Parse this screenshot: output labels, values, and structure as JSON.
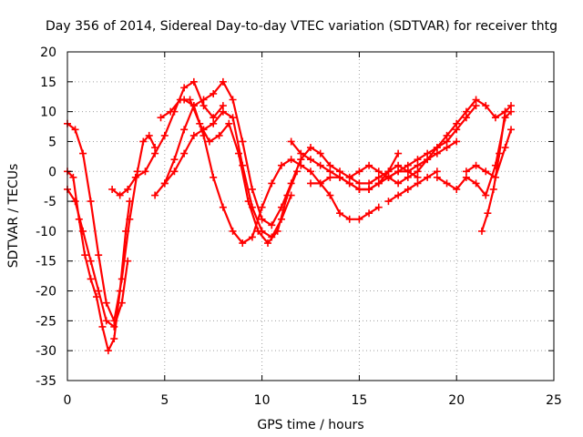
{
  "chart_data": {
    "type": "scatter",
    "title": "Day 356 of 2014, Sidereal Day-to-day VTEC variation (SDTVAR) for receiver thtg",
    "xlabel": "GPS time / hours",
    "ylabel": "SDTVAR / TECUs",
    "xlim": [
      0,
      25
    ],
    "ylim": [
      -35,
      20
    ],
    "xticks": [
      "0",
      "5",
      "10",
      "15",
      "20",
      "25"
    ],
    "yticks": [
      "20",
      "15",
      "10",
      "5",
      "0",
      "-5",
      "-10",
      "-15",
      "-20",
      "-25",
      "-30",
      "-35"
    ],
    "grid": true,
    "marker": "+",
    "color": "#ff0000",
    "series": [
      {
        "x": [
          0.0,
          0.4,
          0.8,
          1.2,
          1.6,
          2.0,
          2.4,
          2.8,
          3.2,
          3.6,
          3.9,
          4.2,
          4.5
        ],
        "y": [
          8,
          7,
          3,
          -5,
          -14,
          -22,
          -25,
          -18,
          -8,
          0,
          5,
          6,
          4
        ]
      },
      {
        "x": [
          0.0,
          0.3,
          0.6,
          0.9,
          1.2,
          1.5,
          1.8,
          2.1,
          2.4,
          2.7,
          3.0,
          3.2
        ],
        "y": [
          0,
          -1,
          -8,
          -14,
          -18,
          -21,
          -26,
          -30,
          -28,
          -20,
          -10,
          -5
        ]
      },
      {
        "x": [
          0.0,
          0.4,
          0.8,
          1.2,
          1.6,
          2.0,
          2.4,
          2.8,
          3.1
        ],
        "y": [
          -3,
          -5,
          -10,
          -15,
          -20,
          -25,
          -26,
          -22,
          -15
        ]
      },
      {
        "x": [
          2.3,
          2.7,
          3.1,
          3.5,
          4.0,
          4.5,
          5.0,
          5.5,
          6.0,
          6.5,
          7.0,
          7.5,
          8.0
        ],
        "y": [
          -3,
          -4,
          -3,
          -1,
          0,
          3,
          6,
          10,
          14,
          15,
          11,
          9,
          11
        ]
      },
      {
        "x": [
          4.5,
          5.0,
          5.5,
          6.0,
          6.5,
          7.0,
          7.5,
          8.0,
          8.5,
          9.0,
          9.5,
          10.0,
          10.5,
          11.0,
          11.5,
          12.0
        ],
        "y": [
          -4,
          -2,
          2,
          7,
          11,
          12,
          13,
          15,
          12,
          5,
          -3,
          -8,
          -9,
          -6,
          -2,
          2
        ]
      },
      {
        "x": [
          4.8,
          5.3,
          5.8,
          6.3,
          6.8,
          7.3,
          7.8,
          8.3,
          8.8,
          9.3,
          9.8,
          10.3,
          10.8,
          11.3,
          11.8
        ],
        "y": [
          9,
          10,
          12,
          12,
          8,
          5,
          6,
          8,
          3,
          -5,
          -10,
          -12,
          -10,
          -4,
          0
        ]
      },
      {
        "x": [
          5.0,
          5.5,
          6.0,
          6.5,
          7.0,
          7.5,
          8.0,
          8.5,
          9.0,
          9.5,
          10.0,
          10.5,
          11.0,
          11.5
        ],
        "y": [
          -2,
          0,
          3,
          6,
          7,
          8,
          10,
          9,
          1,
          -6,
          -10,
          -11,
          -8,
          -4
        ]
      },
      {
        "x": [
          6.0,
          6.5,
          7.0,
          7.5,
          8.0,
          8.5,
          9.0,
          9.5,
          10.0,
          10.5,
          11.0,
          11.5,
          12.0,
          12.5,
          13.0,
          13.5,
          14.0,
          14.5,
          15.0,
          15.5,
          16.0
        ],
        "y": [
          12,
          11,
          6,
          -1,
          -6,
          -10,
          -12,
          -11,
          -6,
          -2,
          1,
          2,
          1,
          0,
          -2,
          -4,
          -7,
          -8,
          -8,
          -7,
          -6
        ]
      },
      {
        "x": [
          11.5,
          12.0,
          12.5,
          13.0,
          13.5,
          14.0,
          14.5,
          15.0,
          15.5,
          16.0,
          16.5,
          17.0
        ],
        "y": [
          5,
          3,
          2,
          1,
          0,
          -1,
          -2,
          -3,
          -3,
          -2,
          0,
          3
        ]
      },
      {
        "x": [
          12.0,
          12.5,
          13.0,
          13.5,
          14.0,
          14.5,
          15.0,
          15.5,
          16.0,
          16.5,
          17.0,
          17.5,
          18.0
        ],
        "y": [
          2,
          4,
          3,
          1,
          0,
          -1,
          -2,
          -2,
          -1,
          0,
          1,
          0,
          -1
        ]
      },
      {
        "x": [
          12.5,
          13.0,
          13.5,
          14.0,
          14.5,
          15.0,
          15.5,
          16.0,
          16.5,
          17.0,
          17.5,
          18.0,
          18.5,
          19.0,
          19.5,
          20.0
        ],
        "y": [
          -2,
          -2,
          -1,
          -1,
          -2,
          -3,
          -3,
          -2,
          -1,
          0,
          0,
          1,
          2,
          3,
          4,
          5
        ]
      },
      {
        "x": [
          14.5,
          15.0,
          15.5,
          16.0,
          16.5,
          17.0,
          17.5,
          18.0,
          18.5,
          19.0,
          19.5,
          20.0,
          20.5,
          21.0,
          21.5,
          22.0,
          22.5
        ],
        "y": [
          -1,
          0,
          1,
          0,
          -1,
          -2,
          -1,
          0,
          2,
          4,
          6,
          8,
          10,
          12,
          11,
          9,
          10
        ]
      },
      {
        "x": [
          15.0,
          15.5,
          16.0,
          16.5,
          17.0,
          17.5,
          18.0,
          18.5,
          19.0,
          19.5,
          20.0,
          20.5,
          21.0
        ],
        "y": [
          -3,
          -3,
          -2,
          -1,
          0,
          1,
          2,
          3,
          4,
          5,
          7,
          9,
          11
        ]
      },
      {
        "x": [
          16.5,
          17.0,
          17.5,
          18.0,
          18.5,
          19.0
        ],
        "y": [
          -5,
          -4,
          -3,
          -2,
          -1,
          0
        ]
      },
      {
        "x": [
          19.0,
          19.5,
          20.0,
          20.5,
          21.0,
          21.5,
          22.0,
          22.5,
          22.8
        ],
        "y": [
          -1,
          -2,
          -3,
          -1,
          -2,
          -4,
          1,
          9,
          10
        ]
      },
      {
        "x": [
          20.5,
          21.0,
          21.5,
          22.0,
          22.5,
          22.8
        ],
        "y": [
          0,
          1,
          0,
          -1,
          4,
          7
        ]
      },
      {
        "x": [
          21.3,
          21.6,
          21.9,
          22.2,
          22.5,
          22.8
        ],
        "y": [
          -10,
          -7,
          -3,
          3,
          10,
          11
        ]
      }
    ]
  }
}
